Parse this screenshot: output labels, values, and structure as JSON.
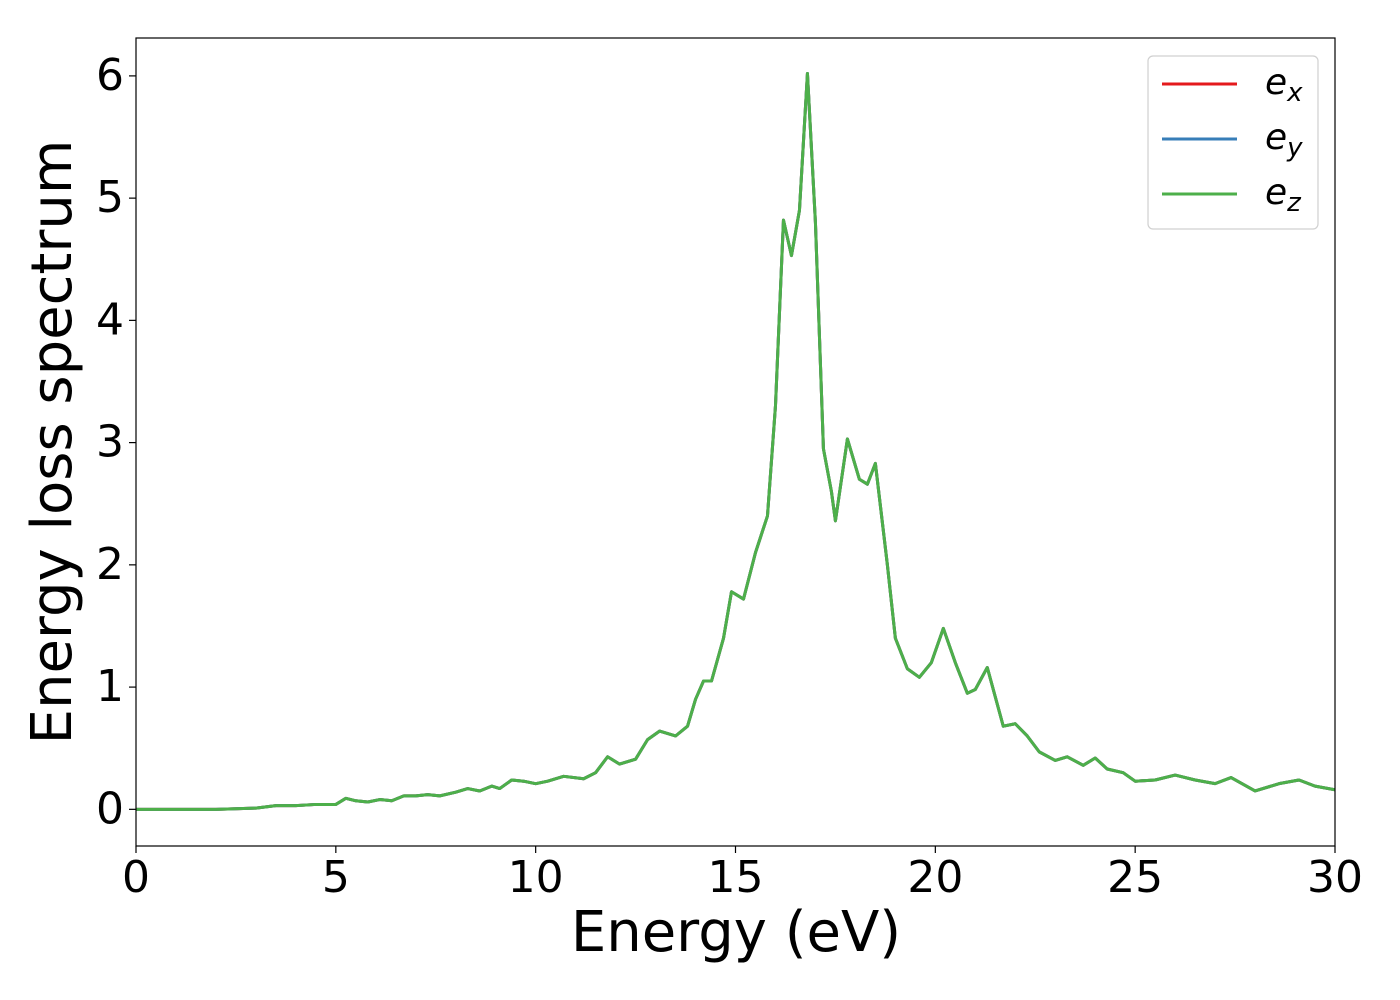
{
  "chart_data": {
    "type": "line",
    "xlabel": "Energy (eV)",
    "ylabel": "Energy loss spectrum",
    "xlim": [
      0,
      30
    ],
    "ylim": [
      -0.3,
      6.31
    ],
    "xticks": [
      0,
      5,
      10,
      15,
      20,
      25,
      30
    ],
    "yticks": [
      0,
      1,
      2,
      3,
      4,
      5,
      6
    ],
    "legend": "upper right",
    "x": [
      0,
      1,
      2,
      3,
      3.5,
      4,
      4.5,
      5,
      5.25,
      5.5,
      5.8,
      6.1,
      6.4,
      6.7,
      7,
      7.3,
      7.6,
      8,
      8.3,
      8.6,
      8.9,
      9.1,
      9.4,
      9.7,
      10,
      10.3,
      10.7,
      11.2,
      11.5,
      11.8,
      12.1,
      12.5,
      12.8,
      13.1,
      13.5,
      13.8,
      14,
      14.2,
      14.4,
      14.7,
      14.9,
      15.2,
      15.5,
      15.8,
      16,
      16.2,
      16.4,
      16.6,
      16.8,
      17,
      17.2,
      17.4,
      17.5,
      17.8,
      18.1,
      18.3,
      18.5,
      18.8,
      19,
      19.3,
      19.6,
      19.9,
      20.2,
      20.5,
      20.8,
      21,
      21.3,
      21.7,
      22,
      22.3,
      22.6,
      23,
      23.3,
      23.7,
      24,
      24.3,
      24.7,
      25,
      25.5,
      26,
      26.5,
      27,
      27.4,
      28,
      28.6,
      29.1,
      29.5,
      30
    ],
    "series": [
      {
        "name": "ex",
        "color": "#e41a1c",
        "values": [
          0,
          0,
          0,
          0.01,
          0.03,
          0.03,
          0.04,
          0.04,
          0.09,
          0.07,
          0.06,
          0.08,
          0.07,
          0.11,
          0.11,
          0.12,
          0.11,
          0.14,
          0.17,
          0.15,
          0.19,
          0.17,
          0.24,
          0.23,
          0.21,
          0.23,
          0.27,
          0.25,
          0.3,
          0.43,
          0.37,
          0.41,
          0.57,
          0.64,
          0.6,
          0.68,
          0.9,
          1.05,
          1.05,
          1.4,
          1.78,
          1.72,
          2.1,
          2.4,
          3.3,
          4.82,
          4.53,
          4.9,
          6.02,
          4.8,
          2.95,
          2.6,
          2.36,
          3.03,
          2.7,
          2.66,
          2.83,
          2.0,
          1.4,
          1.15,
          1.08,
          1.2,
          1.48,
          1.2,
          0.95,
          0.98,
          1.16,
          0.68,
          0.7,
          0.6,
          0.47,
          0.4,
          0.43,
          0.36,
          0.42,
          0.33,
          0.3,
          0.23,
          0.24,
          0.28,
          0.24,
          0.21,
          0.26,
          0.15,
          0.21,
          0.24,
          0.19,
          0.16
        ]
      },
      {
        "name": "ey",
        "color": "#377eb8",
        "values": [
          0,
          0,
          0,
          0.01,
          0.03,
          0.03,
          0.04,
          0.04,
          0.09,
          0.07,
          0.06,
          0.08,
          0.07,
          0.11,
          0.11,
          0.12,
          0.11,
          0.14,
          0.17,
          0.15,
          0.19,
          0.17,
          0.24,
          0.23,
          0.21,
          0.23,
          0.27,
          0.25,
          0.3,
          0.43,
          0.37,
          0.41,
          0.57,
          0.64,
          0.6,
          0.68,
          0.9,
          1.05,
          1.05,
          1.4,
          1.78,
          1.72,
          2.1,
          2.4,
          3.3,
          4.82,
          4.53,
          4.9,
          6.02,
          4.8,
          2.95,
          2.6,
          2.36,
          3.03,
          2.7,
          2.66,
          2.83,
          2.0,
          1.4,
          1.15,
          1.08,
          1.2,
          1.48,
          1.2,
          0.95,
          0.98,
          1.16,
          0.68,
          0.7,
          0.6,
          0.47,
          0.4,
          0.43,
          0.36,
          0.42,
          0.33,
          0.3,
          0.23,
          0.24,
          0.28,
          0.24,
          0.21,
          0.26,
          0.15,
          0.21,
          0.24,
          0.19,
          0.16
        ]
      },
      {
        "name": "ez",
        "color": "#4daf4a",
        "values": [
          0,
          0,
          0,
          0.01,
          0.03,
          0.03,
          0.04,
          0.04,
          0.09,
          0.07,
          0.06,
          0.08,
          0.07,
          0.11,
          0.11,
          0.12,
          0.11,
          0.14,
          0.17,
          0.15,
          0.19,
          0.17,
          0.24,
          0.23,
          0.21,
          0.23,
          0.27,
          0.25,
          0.3,
          0.43,
          0.37,
          0.41,
          0.57,
          0.64,
          0.6,
          0.68,
          0.9,
          1.05,
          1.05,
          1.4,
          1.78,
          1.72,
          2.1,
          2.4,
          3.3,
          4.82,
          4.53,
          4.9,
          6.02,
          4.8,
          2.95,
          2.6,
          2.36,
          3.03,
          2.7,
          2.66,
          2.83,
          2.0,
          1.4,
          1.15,
          1.08,
          1.2,
          1.48,
          1.2,
          0.95,
          0.98,
          1.16,
          0.68,
          0.7,
          0.6,
          0.47,
          0.4,
          0.43,
          0.36,
          0.42,
          0.33,
          0.3,
          0.23,
          0.24,
          0.28,
          0.24,
          0.21,
          0.26,
          0.15,
          0.21,
          0.24,
          0.19,
          0.16
        ]
      }
    ]
  }
}
